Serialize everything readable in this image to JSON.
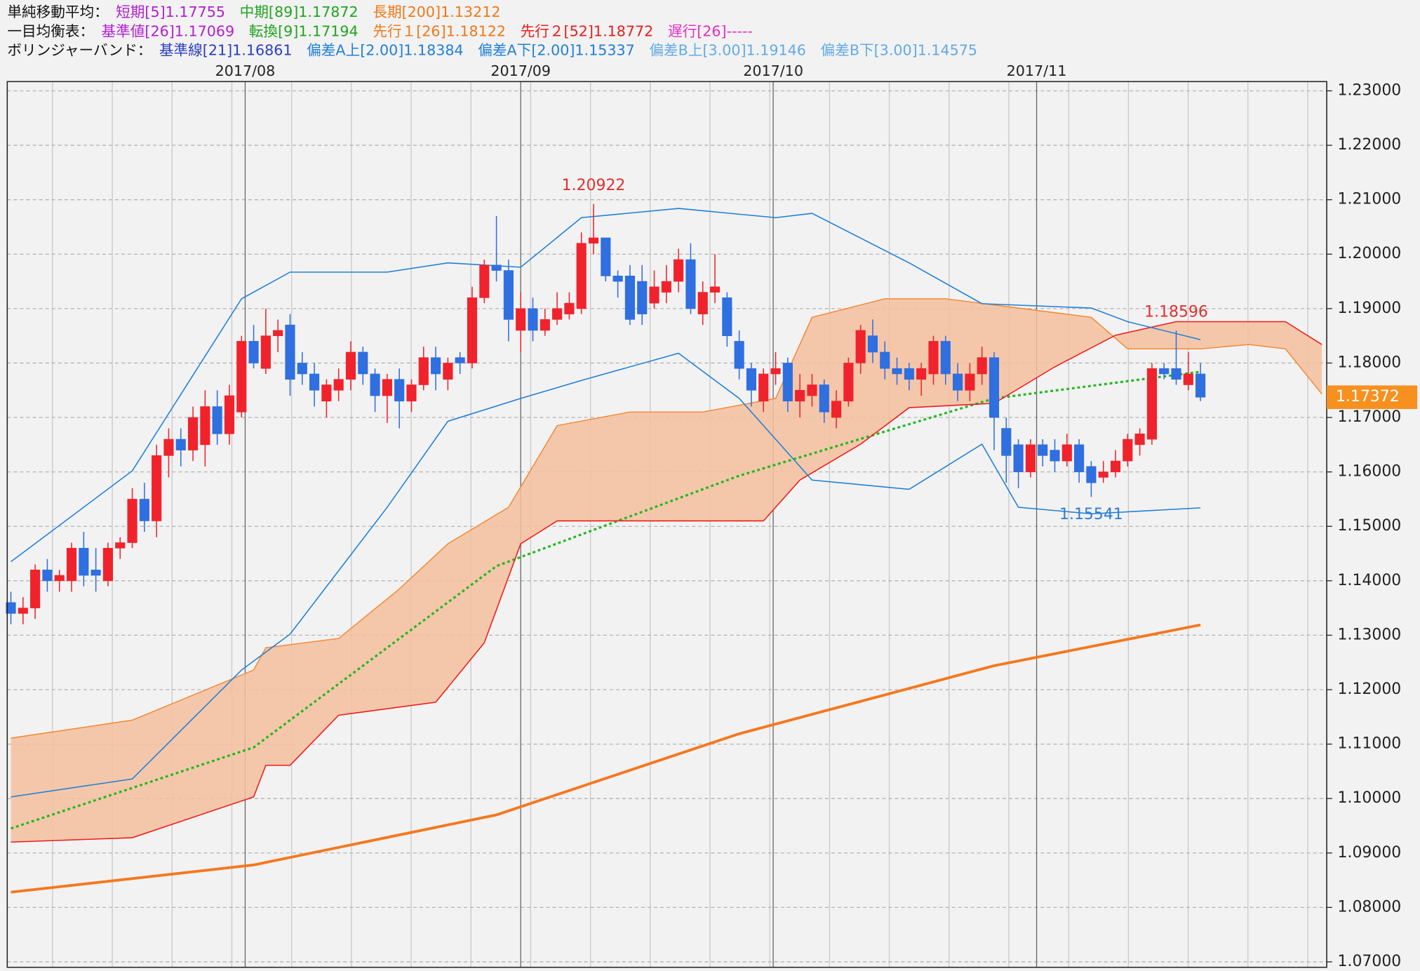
{
  "chart_data": {
    "type": "candlestick",
    "legend": [
      {
        "label": "単純移動平均：",
        "items": [
          {
            "text": "短期[5]1.17755",
            "color": "#b21fd0"
          },
          {
            "text": "中期[89]1.17872",
            "color": "#1fa51f"
          },
          {
            "text": "長期[200]1.13212",
            "color": "#f07818"
          }
        ]
      },
      {
        "label": "一目均衡表：",
        "items": [
          {
            "text": "基準値[26]1.17069",
            "color": "#b21fd0"
          },
          {
            "text": "転換[9]1.17194",
            "color": "#1fa51f"
          },
          {
            "text": "先行１[26]1.18122",
            "color": "#f07818"
          },
          {
            "text": "先行２[52]1.18772",
            "color": "#e81c1c"
          },
          {
            "text": "遅行[26]-----",
            "color": "#e030c0"
          }
        ]
      },
      {
        "label": "ボリンジャーバンド：",
        "items": [
          {
            "text": "基準線[21]1.16861",
            "color": "#2a3ec0"
          },
          {
            "text": "偏差A上[2.00]1.18384",
            "color": "#1f7fd8"
          },
          {
            "text": "偏差A下[2.00]1.15337",
            "color": "#1f7fd8"
          },
          {
            "text": "偏差B上[3.00]1.19146",
            "color": "#62aae6"
          },
          {
            "text": "偏差B下[3.00]1.14575",
            "color": "#62aae6"
          }
        ]
      }
    ],
    "candles": {
      "up_color": "#f0232c",
      "down_color": "#2f6fe0",
      "open": [
        1.136,
        1.134,
        1.135,
        1.142,
        1.14,
        1.14,
        1.146,
        1.142,
        1.14,
        1.146,
        1.147,
        1.155,
        1.151,
        1.163,
        1.166,
        1.164,
        1.165,
        1.172,
        1.167,
        1.171,
        1.184,
        1.179,
        1.185,
        1.187,
        1.18,
        1.178,
        1.173,
        1.175,
        1.177,
        1.182,
        1.178,
        1.174,
        1.177,
        1.173,
        1.176,
        1.181,
        1.177,
        1.181,
        1.18,
        1.192,
        1.198,
        1.197,
        1.186,
        1.19,
        1.186,
        1.188,
        1.189,
        1.19,
        1.202,
        1.203,
        1.196,
        1.196,
        1.195,
        1.191,
        1.193,
        1.195,
        1.199,
        1.189,
        1.193,
        1.192,
        1.184,
        1.179,
        1.173,
        1.178,
        1.18,
        1.173,
        1.174,
        1.176,
        1.17,
        1.173,
        1.18,
        1.185,
        1.182,
        1.179,
        1.179,
        1.177,
        1.178,
        1.184,
        1.178,
        1.175,
        1.178,
        1.181,
        1.168,
        1.165,
        1.16,
        1.165,
        1.164,
        1.162,
        1.165,
        1.161,
        1.159,
        1.16,
        1.162,
        1.165,
        1.166,
        1.179,
        1.179,
        1.176,
        1.178
      ],
      "close": [
        1.134,
        1.135,
        1.142,
        1.14,
        1.141,
        1.146,
        1.141,
        1.141,
        1.146,
        1.147,
        1.155,
        1.151,
        1.163,
        1.166,
        1.164,
        1.17,
        1.172,
        1.167,
        1.174,
        1.184,
        1.18,
        1.185,
        1.186,
        1.177,
        1.178,
        1.175,
        1.176,
        1.177,
        1.182,
        1.178,
        1.174,
        1.177,
        1.173,
        1.176,
        1.181,
        1.178,
        1.18,
        1.18,
        1.192,
        1.198,
        1.197,
        1.188,
        1.19,
        1.186,
        1.188,
        1.19,
        1.191,
        1.202,
        1.203,
        1.196,
        1.195,
        1.188,
        1.189,
        1.194,
        1.195,
        1.199,
        1.19,
        1.193,
        1.194,
        1.185,
        1.179,
        1.175,
        1.178,
        1.179,
        1.173,
        1.175,
        1.176,
        1.171,
        1.173,
        1.18,
        1.186,
        1.182,
        1.179,
        1.178,
        1.177,
        1.179,
        1.184,
        1.178,
        1.175,
        1.178,
        1.181,
        1.17,
        1.163,
        1.16,
        1.165,
        1.163,
        1.162,
        1.165,
        1.16,
        1.158,
        1.16,
        1.162,
        1.166,
        1.167,
        1.179,
        1.178,
        1.177,
        1.178,
        1.17372
      ],
      "high": [
        1.138,
        1.137,
        1.143,
        1.144,
        1.142,
        1.147,
        1.149,
        1.146,
        1.147,
        1.148,
        1.157,
        1.158,
        1.165,
        1.168,
        1.168,
        1.172,
        1.175,
        1.175,
        1.176,
        1.185,
        1.187,
        1.19,
        1.188,
        1.189,
        1.182,
        1.18,
        1.177,
        1.179,
        1.184,
        1.183,
        1.179,
        1.178,
        1.179,
        1.177,
        1.183,
        1.183,
        1.181,
        1.182,
        1.194,
        1.199,
        1.207,
        1.199,
        1.193,
        1.192,
        1.19,
        1.193,
        1.193,
        1.204,
        1.20922,
        1.203,
        1.197,
        1.198,
        1.198,
        1.197,
        1.198,
        1.201,
        1.202,
        1.195,
        1.2,
        1.193,
        1.186,
        1.18,
        1.179,
        1.182,
        1.181,
        1.178,
        1.178,
        1.177,
        1.175,
        1.181,
        1.187,
        1.188,
        1.184,
        1.181,
        1.18,
        1.18,
        1.185,
        1.185,
        1.18,
        1.18,
        1.183,
        1.182,
        1.17,
        1.166,
        1.166,
        1.166,
        1.166,
        1.167,
        1.166,
        1.162,
        1.162,
        1.164,
        1.167,
        1.168,
        1.18,
        1.18,
        1.18596,
        1.182,
        1.18
      ],
      "low": [
        1.132,
        1.132,
        1.133,
        1.138,
        1.138,
        1.138,
        1.139,
        1.138,
        1.139,
        1.144,
        1.146,
        1.149,
        1.148,
        1.159,
        1.161,
        1.162,
        1.161,
        1.165,
        1.165,
        1.17,
        1.179,
        1.178,
        1.182,
        1.174,
        1.176,
        1.172,
        1.17,
        1.173,
        1.175,
        1.176,
        1.171,
        1.169,
        1.168,
        1.171,
        1.175,
        1.175,
        1.175,
        1.178,
        1.179,
        1.191,
        1.195,
        1.184,
        1.182,
        1.184,
        1.185,
        1.187,
        1.188,
        1.189,
        1.2,
        1.195,
        1.192,
        1.187,
        1.187,
        1.19,
        1.191,
        1.193,
        1.189,
        1.187,
        1.191,
        1.183,
        1.177,
        1.172,
        1.171,
        1.176,
        1.171,
        1.17,
        1.172,
        1.169,
        1.168,
        1.172,
        1.178,
        1.18,
        1.177,
        1.176,
        1.175,
        1.174,
        1.176,
        1.176,
        1.173,
        1.173,
        1.176,
        1.164,
        1.158,
        1.157,
        1.159,
        1.161,
        1.16,
        1.161,
        1.158,
        1.15541,
        1.158,
        1.159,
        1.161,
        1.163,
        1.165,
        1.177,
        1.176,
        1.175,
        1.173
      ]
    },
    "cloud_color": "#f6c09e",
    "series": [
      {
        "color": "#f5781e",
        "width": 3,
        "dash": "none",
        "x": [
          0,
          20,
          40,
          60,
          81,
          98
        ],
        "values": [
          1.0828,
          1.0878,
          1.097,
          1.1119,
          1.1244,
          1.1319
        ]
      },
      {
        "color": "#22b822",
        "width": 2.5,
        "dash": "3 3",
        "x": [
          0,
          20,
          40,
          60,
          81,
          98
        ],
        "values": [
          1.0945,
          1.1094,
          1.1427,
          1.1593,
          1.1735,
          1.1784
        ]
      },
      {
        "color": "#f28c3c",
        "width": 1.2,
        "dash": "none",
        "x": [
          0,
          10,
          20,
          21,
          27,
          32,
          36,
          41,
          45,
          51,
          57,
          63,
          66,
          72,
          77,
          83,
          89,
          92,
          98,
          102,
          105,
          108
        ],
        "values": [
          1.1111,
          1.1144,
          1.1236,
          1.1277,
          1.1294,
          1.1385,
          1.1468,
          1.1535,
          1.1685,
          1.171,
          1.171,
          1.1735,
          1.1884,
          1.1918,
          1.1918,
          1.1901,
          1.1884,
          1.1826,
          1.1826,
          1.1834,
          1.1826,
          1.1743
        ]
      },
      {
        "color": "#ee1c1c",
        "width": 1.2,
        "dash": "none",
        "x": [
          0,
          10,
          20,
          21,
          23,
          27,
          35,
          39,
          42,
          45,
          62,
          65,
          70,
          74,
          81,
          86,
          91,
          96,
          105,
          108
        ],
        "values": [
          1.092,
          1.0928,
          1.1003,
          1.1061,
          1.1061,
          1.1153,
          1.1177,
          1.1286,
          1.1468,
          1.151,
          1.151,
          1.1585,
          1.1651,
          1.1718,
          1.1726,
          1.1793,
          1.1851,
          1.1876,
          1.1876,
          1.1834
        ]
      },
      {
        "color": "#1f7fd8",
        "width": 1.2,
        "dash": "none",
        "x": [
          0,
          10,
          19,
          23,
          31,
          36,
          42,
          47,
          55,
          63,
          66,
          74,
          80,
          89,
          92,
          98
        ],
        "values": [
          1.1435,
          1.1602,
          1.1918,
          1.1967,
          1.1967,
          1.1984,
          1.1976,
          1.2067,
          1.2084,
          1.2067,
          1.2075,
          1.1984,
          1.1909,
          1.1901,
          1.1876,
          1.1843
        ]
      },
      {
        "color": "#1f7fd8",
        "width": 1.2,
        "dash": "none",
        "x": [
          0,
          10,
          19,
          23,
          31,
          36,
          42,
          47,
          55,
          60,
          66,
          74,
          80,
          83,
          89,
          98
        ],
        "values": [
          1.1003,
          1.1036,
          1.1236,
          1.1302,
          1.1535,
          1.1693,
          1.1735,
          1.1768,
          1.1818,
          1.1735,
          1.1585,
          1.1568,
          1.1651,
          1.1535,
          1.1523,
          1.1534
        ]
      }
    ],
    "annotations": [
      {
        "text": "1.20922",
        "value": 1.20922,
        "color": "#e03030",
        "at": "high"
      },
      {
        "text": "1.18596",
        "value": 1.18596,
        "color": "#e03030",
        "at": "high"
      },
      {
        "text": "1.15541",
        "value": 1.15541,
        "color": "#2f7fd0",
        "at": "low"
      }
    ],
    "last_price": {
      "value": 1.17372,
      "label": "1.17372",
      "color": "#f7901e"
    },
    "xlim": [
      -0.3,
      108.4
    ],
    "xticks": [
      {
        "value": 19.3,
        "label": "2017/08"
      },
      {
        "value": 42,
        "label": "2017/09"
      },
      {
        "value": 62.8,
        "label": "2017/10"
      },
      {
        "value": 84.5,
        "label": "2017/11"
      }
    ],
    "ylim": [
      1.069,
      1.2317
    ],
    "yticks": [
      {
        "value": 1.23,
        "label": "1.23000"
      },
      {
        "value": 1.22,
        "label": "1.22000"
      },
      {
        "value": 1.21,
        "label": "1.21000"
      },
      {
        "value": 1.2,
        "label": "1.20000"
      },
      {
        "value": 1.19,
        "label": "1.19000"
      },
      {
        "value": 1.18,
        "label": "1.18000"
      },
      {
        "value": 1.17,
        "label": "1.17000"
      },
      {
        "value": 1.16,
        "label": "1.16000"
      },
      {
        "value": 1.15,
        "label": "1.15000"
      },
      {
        "value": 1.14,
        "label": "1.14000"
      },
      {
        "value": 1.13,
        "label": "1.13000"
      },
      {
        "value": 1.12,
        "label": "1.12000"
      },
      {
        "value": 1.11,
        "label": "1.11000"
      },
      {
        "value": 1.1,
        "label": "1.10000"
      },
      {
        "value": 1.09,
        "label": "1.09000"
      },
      {
        "value": 1.08,
        "label": "1.08000"
      },
      {
        "value": 1.07,
        "label": "1.07000"
      }
    ],
    "grid": true
  }
}
